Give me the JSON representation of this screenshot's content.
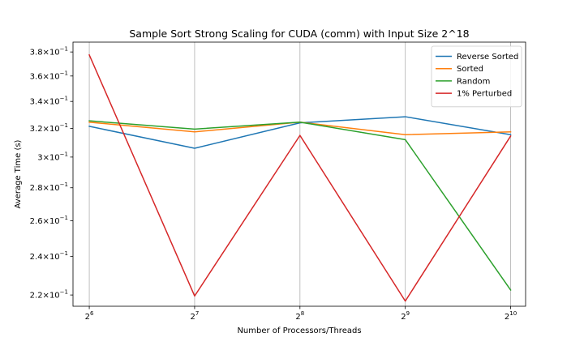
{
  "chart_data": {
    "type": "line",
    "title": "Sample Sort Strong Scaling for CUDA (comm) with Input Size 2^18",
    "xlabel": "Number of Processors/Threads",
    "ylabel": "Average Time (s)",
    "x_scale": "log2",
    "y_scale": "log",
    "x": [
      64,
      128,
      256,
      512,
      1024
    ],
    "x_tick_labels": [
      {
        "base": "2",
        "exp": "6"
      },
      {
        "base": "2",
        "exp": "7"
      },
      {
        "base": "2",
        "exp": "8"
      },
      {
        "base": "2",
        "exp": "9"
      },
      {
        "base": "2",
        "exp": "10"
      }
    ],
    "y_ticks": [
      0.22,
      0.24,
      0.26,
      0.28,
      0.3,
      0.32,
      0.34,
      0.36,
      0.38
    ],
    "y_tick_labels": [
      {
        "mant": "2.2",
        "times": "×",
        "base": "10",
        "exp": "−1"
      },
      {
        "mant": "2.4",
        "times": "×",
        "base": "10",
        "exp": "−1"
      },
      {
        "mant": "2.6",
        "times": "×",
        "base": "10",
        "exp": "−1"
      },
      {
        "mant": "2.8",
        "times": "×",
        "base": "10",
        "exp": "−1"
      },
      {
        "mant": "3",
        "times": "×",
        "base": "10",
        "exp": "−1"
      },
      {
        "mant": "3.2",
        "times": "×",
        "base": "10",
        "exp": "−1"
      },
      {
        "mant": "3.4",
        "times": "×",
        "base": "10",
        "exp": "−1"
      },
      {
        "mant": "3.6",
        "times": "×",
        "base": "10",
        "exp": "−1"
      },
      {
        "mant": "3.8",
        "times": "×",
        "base": "10",
        "exp": "−1"
      }
    ],
    "xlim": [
      57.5,
      1130
    ],
    "ylim": [
      0.2145,
      0.3885
    ],
    "grid": "vertical-only",
    "legend_position": "top-right",
    "series": [
      {
        "name": "Reverse Sorted",
        "color": "#1f77b4",
        "values": [
          0.3215,
          0.306,
          0.324,
          0.3285,
          0.3155
        ]
      },
      {
        "name": "Sorted",
        "color": "#ff7f0e",
        "values": [
          0.3245,
          0.3175,
          0.3245,
          0.3155,
          0.3175
        ]
      },
      {
        "name": "Random",
        "color": "#2ca02c",
        "values": [
          0.3255,
          0.3195,
          0.3245,
          0.312,
          0.2225
        ]
      },
      {
        "name": "1% Perturbed",
        "color": "#d62728",
        "values": [
          0.3775,
          0.2195,
          0.315,
          0.217,
          0.3145
        ]
      }
    ]
  }
}
